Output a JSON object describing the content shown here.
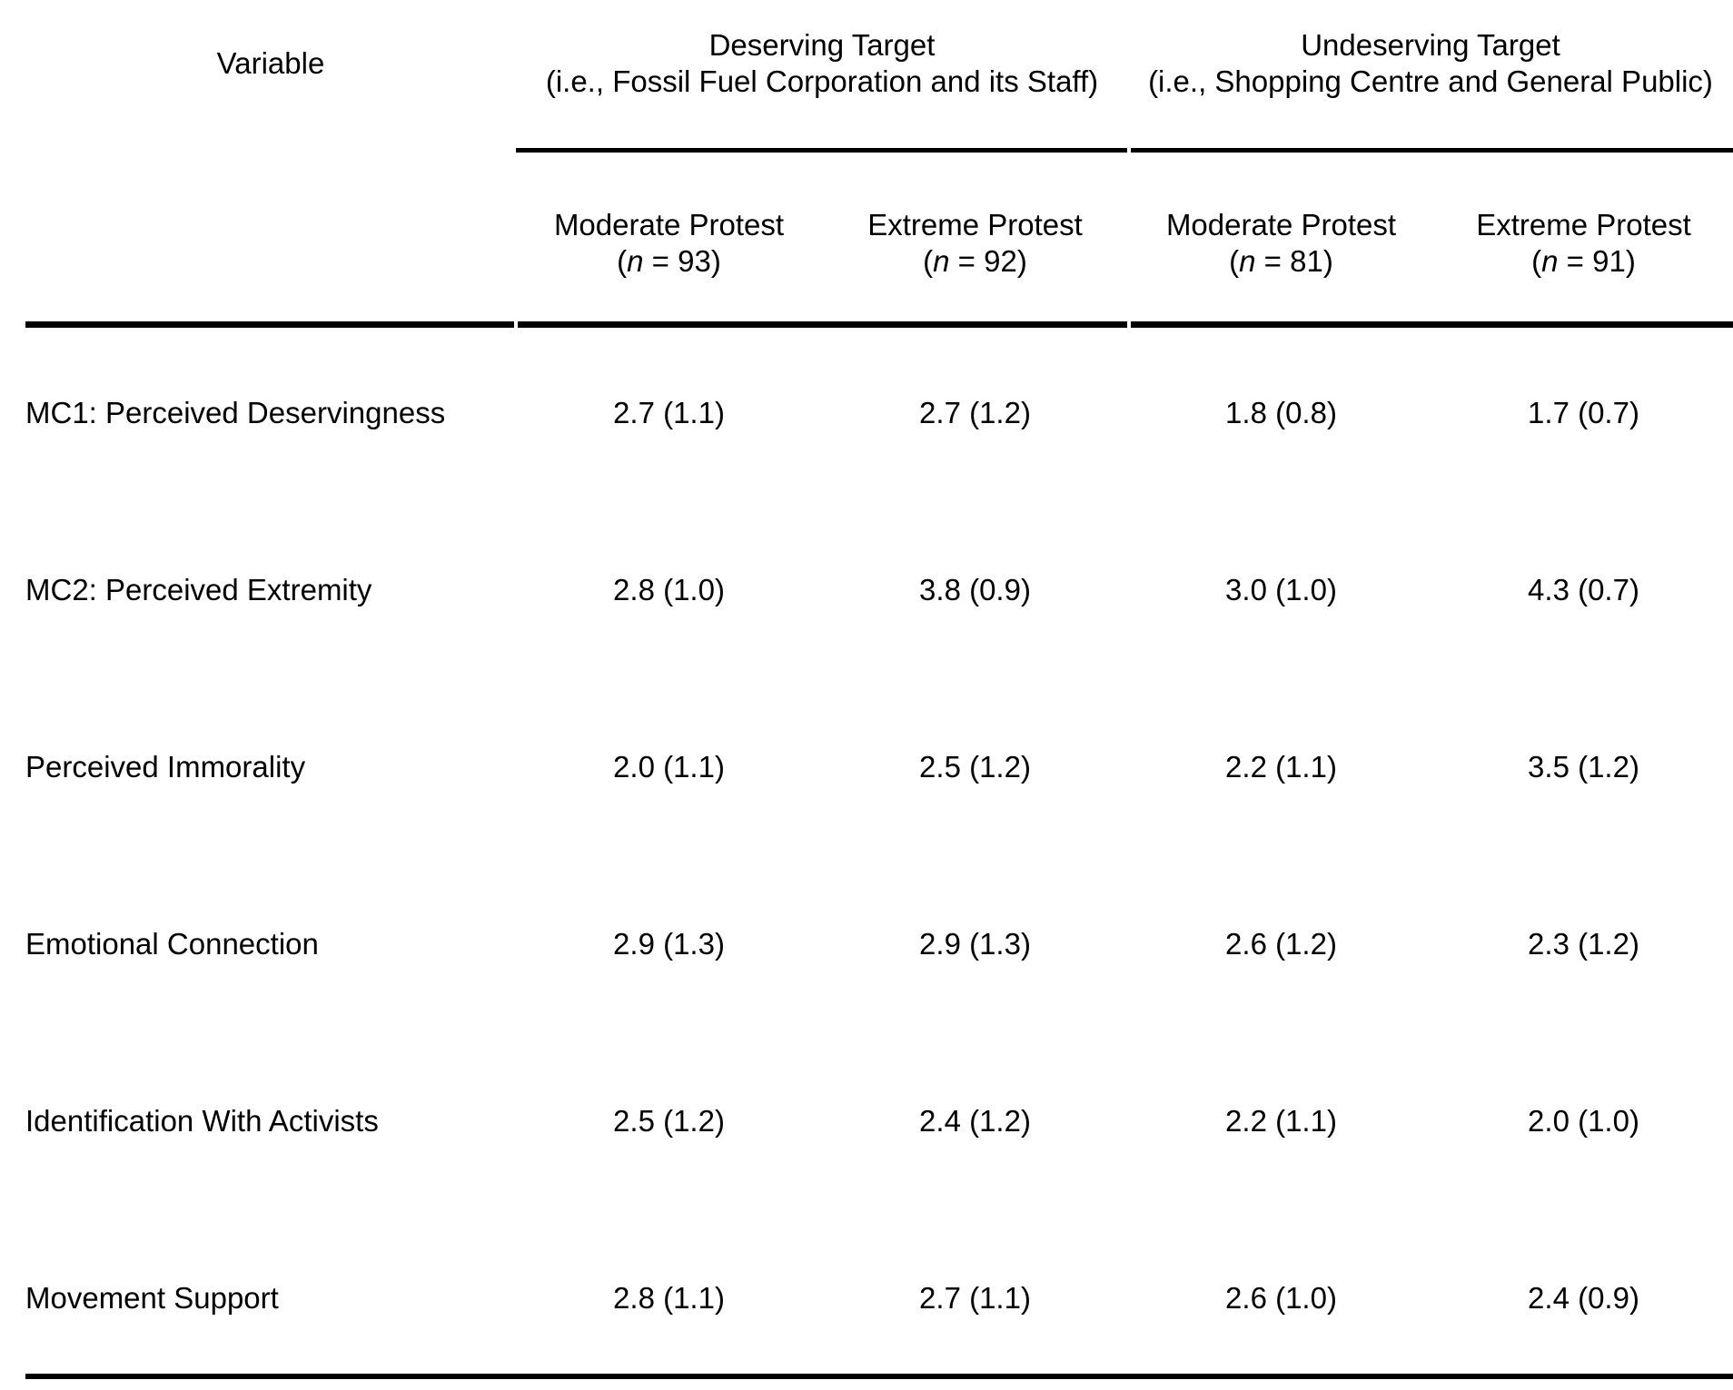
{
  "table": {
    "colors": {
      "text": "#000000",
      "background": "#ffffff",
      "rule": "#000000"
    },
    "col1_header": "Variable",
    "groups": [
      {
        "line1": "Deserving Target",
        "line2": "(i.e., Fossil Fuel Corporation and its Staff)"
      },
      {
        "line1": "Undeserving Target",
        "line2": "(i.e., Shopping Centre and General Public)"
      }
    ],
    "columns": [
      {
        "label": "Moderate Protest",
        "n": "93",
        "n_runs": [
          {
            "t": "("
          },
          {
            "t": "n",
            "i": true
          },
          {
            "t": " = 93)"
          }
        ]
      },
      {
        "label": "Extreme Protest",
        "n": "92",
        "n_runs": [
          {
            "t": "("
          },
          {
            "t": "n",
            "i": true
          },
          {
            "t": " = 92)"
          }
        ]
      },
      {
        "label": "Moderate Protest",
        "n": "81",
        "n_runs": [
          {
            "t": "("
          },
          {
            "t": "n",
            "i": true
          },
          {
            "t": " = 81)"
          }
        ]
      },
      {
        "label": "Extreme Protest",
        "n": "91",
        "n_runs": [
          {
            "t": "("
          },
          {
            "t": "n",
            "i": true
          },
          {
            "t": " = 91)"
          }
        ]
      }
    ],
    "rows": [
      {
        "label": "MC1: Perceived Deservingness",
        "values": [
          "2.7 (1.1)",
          "2.7 (1.2)",
          "1.8 (0.8)",
          "1.7 (0.7)"
        ]
      },
      {
        "label": "MC2: Perceived Extremity",
        "values": [
          "2.8 (1.0)",
          "3.8 (0.9)",
          "3.0 (1.0)",
          "4.3 (0.7)"
        ]
      },
      {
        "label": "Perceived Immorality",
        "values": [
          "2.0 (1.1)",
          "2.5 (1.2)",
          "2.2 (1.1)",
          "3.5 (1.2)"
        ]
      },
      {
        "label": "Emotional Connection",
        "values": [
          "2.9 (1.3)",
          "2.9 (1.3)",
          "2.6 (1.2)",
          "2.3 (1.2)"
        ]
      },
      {
        "label": "Identification With Activists",
        "values": [
          "2.5 (1.2)",
          "2.4 (1.2)",
          "2.2 (1.1)",
          "2.0 (1.0)"
        ]
      },
      {
        "label": "Movement Support",
        "values": [
          "2.8 (1.1)",
          "2.7 (1.1)",
          "2.6 (1.0)",
          "2.4 (0.9)"
        ]
      }
    ]
  }
}
